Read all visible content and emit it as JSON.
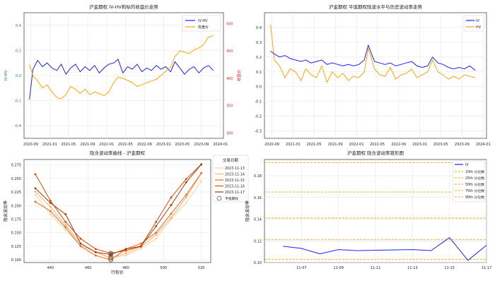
{
  "chart_data": [
    {
      "type": "line",
      "title": "沪金期权 IV-HV和标的收盘价走势",
      "ylabel_left": "IV-HV",
      "ylabel_right": "收盘价",
      "ylim_left": [
        -0.5,
        0.5
      ],
      "ylim_right": [
        290,
        520
      ],
      "yticks_left": [
        "0.4",
        "0.2",
        "0.0",
        "-0.2",
        "-0.4"
      ],
      "yticks_right": [
        "500",
        "450",
        "400",
        "350",
        "300"
      ],
      "xticks": [
        "2020-09",
        "2021-01",
        "2021-05",
        "2021-09",
        "2022-01",
        "2022-05",
        "2022-09",
        "2023-01",
        "2023-05",
        "2023-09",
        "2024-01"
      ],
      "legend_position": "upper right",
      "series": [
        {
          "name": "IV-HV",
          "color": "#1f1fff",
          "axis": "left",
          "x": [
            "2020-08-24",
            "2020-09-15",
            "2020-10-15",
            "2020-11-15",
            "2020-12-15",
            "2021-01-15",
            "2021-02-15",
            "2021-03-15",
            "2021-04-15",
            "2021-05-15",
            "2021-06-15",
            "2021-07-15",
            "2021-08-15",
            "2021-09-15",
            "2021-10-15",
            "2021-11-15",
            "2021-12-15",
            "2022-01-15",
            "2022-02-15",
            "2022-03-15",
            "2022-04-15",
            "2022-05-15",
            "2022-06-15",
            "2022-07-15",
            "2022-08-15",
            "2022-09-15",
            "2022-10-15",
            "2022-11-15",
            "2022-12-15",
            "2023-01-15",
            "2023-02-15",
            "2023-03-15",
            "2023-04-15",
            "2023-05-15",
            "2023-06-15",
            "2023-07-15",
            "2023-08-15",
            "2023-09-15",
            "2023-10-15",
            "2023-11-17"
          ],
          "values": [
            -0.19,
            0.05,
            0.12,
            0.07,
            0.1,
            0.06,
            0.04,
            0.09,
            0.01,
            0.06,
            0.09,
            0.03,
            0.07,
            0.04,
            0.08,
            0.02,
            0.06,
            0.09,
            0.1,
            0.13,
            0.02,
            0.07,
            0.05,
            0.09,
            0.03,
            0.06,
            0.04,
            0.08,
            0.05,
            0.07,
            0.03,
            0.11,
            0.06,
            0.01,
            0.05,
            0.07,
            0.02,
            0.06,
            0.08,
            0.04
          ]
        },
        {
          "name": "收盘价",
          "color": "#ffa500",
          "axis": "right",
          "x": [
            "2020-08-24",
            "2020-09-15",
            "2020-10-15",
            "2020-11-15",
            "2020-12-15",
            "2021-01-15",
            "2021-02-15",
            "2021-03-15",
            "2021-04-15",
            "2021-05-15",
            "2021-06-15",
            "2021-07-15",
            "2021-08-15",
            "2021-09-15",
            "2021-10-15",
            "2021-11-15",
            "2021-12-15",
            "2022-01-15",
            "2022-02-15",
            "2022-03-15",
            "2022-04-15",
            "2022-05-15",
            "2022-06-15",
            "2022-07-15",
            "2022-08-15",
            "2022-09-15",
            "2022-10-15",
            "2022-11-15",
            "2022-12-15",
            "2023-01-15",
            "2023-02-15",
            "2023-03-15",
            "2023-04-15",
            "2023-05-15",
            "2023-06-15",
            "2023-07-15",
            "2023-08-15",
            "2023-09-15",
            "2023-10-15",
            "2023-11-17"
          ],
          "values": [
            425,
            405,
            395,
            382,
            388,
            375,
            365,
            362,
            370,
            385,
            380,
            372,
            380,
            370,
            375,
            372,
            368,
            375,
            392,
            402,
            400,
            396,
            392,
            385,
            388,
            392,
            395,
            398,
            405,
            413,
            420,
            440,
            450,
            448,
            445,
            452,
            455,
            462,
            475,
            478
          ]
        }
      ]
    },
    {
      "type": "line",
      "title": "沪金期权 平值期权隐波水平与历史波动率走势",
      "ylim": [
        -0.35,
        0.5
      ],
      "yticks": [
        "0.4",
        "0.3",
        "0.2",
        "0.1",
        "0.0",
        "-0.1",
        "-0.2",
        "-0.3"
      ],
      "xticks": [
        "2020-09",
        "2021-01",
        "2021-05",
        "2021-09",
        "2022-01",
        "2022-05",
        "2022-09",
        "2023-01",
        "2023-05",
        "2023-09",
        "2024-01"
      ],
      "legend_position": "upper right",
      "series": [
        {
          "name": "IV",
          "color": "#1f1fff",
          "x": [
            "2020-08-24",
            "2020-09-15",
            "2020-10-15",
            "2020-11-15",
            "2020-12-15",
            "2021-01-15",
            "2021-02-15",
            "2021-03-15",
            "2021-04-15",
            "2021-05-15",
            "2021-06-15",
            "2021-07-15",
            "2021-08-15",
            "2021-09-15",
            "2021-10-15",
            "2021-11-15",
            "2021-12-15",
            "2022-01-15",
            "2022-02-15",
            "2022-03-10",
            "2022-04-15",
            "2022-05-15",
            "2022-06-15",
            "2022-07-15",
            "2022-08-15",
            "2022-09-15",
            "2022-10-15",
            "2022-11-15",
            "2022-12-15",
            "2023-01-15",
            "2023-02-15",
            "2023-03-15",
            "2023-04-15",
            "2023-05-15",
            "2023-06-15",
            "2023-07-15",
            "2023-08-15",
            "2023-09-15",
            "2023-10-15",
            "2023-11-17"
          ],
          "values": [
            0.24,
            0.22,
            0.2,
            0.21,
            0.19,
            0.18,
            0.17,
            0.18,
            0.16,
            0.17,
            0.18,
            0.15,
            0.16,
            0.15,
            0.14,
            0.15,
            0.14,
            0.15,
            0.18,
            0.28,
            0.17,
            0.16,
            0.15,
            0.16,
            0.14,
            0.15,
            0.16,
            0.17,
            0.14,
            0.13,
            0.14,
            0.2,
            0.16,
            0.15,
            0.13,
            0.12,
            0.13,
            0.12,
            0.14,
            0.11
          ]
        },
        {
          "name": "HV",
          "color": "#ffa500",
          "x": [
            "2020-08-24",
            "2020-09-15",
            "2020-10-15",
            "2020-11-15",
            "2020-12-15",
            "2021-01-15",
            "2021-02-15",
            "2021-03-15",
            "2021-04-15",
            "2021-05-15",
            "2021-06-15",
            "2021-07-15",
            "2021-08-15",
            "2021-09-15",
            "2021-10-15",
            "2021-11-15",
            "2021-12-15",
            "2022-01-15",
            "2022-02-15",
            "2022-03-10",
            "2022-04-15",
            "2022-05-15",
            "2022-06-15",
            "2022-07-15",
            "2022-08-15",
            "2022-09-15",
            "2022-10-15",
            "2022-11-15",
            "2022-12-15",
            "2023-01-15",
            "2023-02-15",
            "2023-03-15",
            "2023-04-15",
            "2023-05-15",
            "2023-06-15",
            "2023-07-15",
            "2023-08-15",
            "2023-09-15",
            "2023-10-15",
            "2023-11-17"
          ],
          "values": [
            0.42,
            0.18,
            0.14,
            0.06,
            0.12,
            0.1,
            0.04,
            0.12,
            0.08,
            0.06,
            0.14,
            0.03,
            0.1,
            0.06,
            0.09,
            0.04,
            0.07,
            0.06,
            0.1,
            0.26,
            0.12,
            0.08,
            0.07,
            0.13,
            0.05,
            0.08,
            0.09,
            0.12,
            0.06,
            0.08,
            0.1,
            0.18,
            0.1,
            0.08,
            0.05,
            0.07,
            0.05,
            0.08,
            0.07,
            0.06
          ]
        }
      ]
    },
    {
      "type": "line",
      "title": "隐含波动率曲线 - 沪金期权",
      "xlabel": "行权价",
      "ylabel": "隐含波动率",
      "xlim": [
        426,
        525
      ],
      "ylim": [
        0.095,
        0.285
      ],
      "xticks": [
        "440",
        "460",
        "480",
        "500",
        "520"
      ],
      "yticks": [
        "0.275",
        "0.250",
        "0.225",
        "0.200",
        "0.175",
        "0.150",
        "0.125",
        "0.100"
      ],
      "legend_title": "交易日期",
      "legend_atm_label": "平值期权",
      "legend_position": "upper right",
      "strikes": [
        432,
        440,
        448,
        456,
        464,
        472,
        480,
        488,
        496,
        504,
        512,
        520
      ],
      "series": [
        {
          "name": "2023-11-13",
          "color": "#fdd0a2",
          "values": [
            0.22,
            0.184,
            0.155,
            0.126,
            0.115,
            0.104,
            0.108,
            0.121,
            0.139,
            0.175,
            0.205,
            0.245
          ],
          "atm": [
            472,
            0.104
          ]
        },
        {
          "name": "2023-11-14",
          "color": "#fdae6b",
          "values": [
            0.226,
            0.198,
            0.164,
            0.13,
            0.114,
            0.103,
            0.112,
            0.124,
            0.146,
            0.178,
            0.215,
            0.26
          ],
          "atm": [
            472,
            0.103
          ]
        },
        {
          "name": "2023-11-15",
          "color": "#f16913",
          "values": [
            0.207,
            0.19,
            0.16,
            0.125,
            0.108,
            0.1,
            0.12,
            0.13,
            0.15,
            0.185,
            0.22,
            0.26
          ],
          "atm": [
            472,
            0.1
          ]
        },
        {
          "name": "2023-11-16",
          "color": "#d94801",
          "values": [
            0.258,
            0.209,
            0.17,
            0.139,
            0.12,
            0.112,
            0.117,
            0.125,
            0.17,
            0.215,
            0.249,
            0.276
          ],
          "atm": [
            472,
            0.112
          ]
        },
        {
          "name": "2023-11-17",
          "color": "#a63603",
          "values": [
            0.232,
            0.205,
            0.184,
            0.13,
            0.114,
            0.11,
            0.12,
            0.125,
            0.162,
            0.201,
            0.243,
            0.276
          ],
          "atm": [
            472,
            0.11
          ]
        }
      ]
    },
    {
      "type": "line",
      "title": "沪金期权 隐含波动率锥形图",
      "ylabel": "隐含波动率",
      "ylim": [
        0.1,
        0.195
      ],
      "yticks": [
        "0.18",
        "0.16",
        "0.14",
        "0.12",
        "0.10"
      ],
      "xticks": [
        "11-07",
        "11-09",
        "11-11",
        "11-13",
        "11-15",
        "11-17"
      ],
      "xlim": [
        "2023-11-06",
        "2023-11-17"
      ],
      "legend_position": "upper right",
      "series": [
        {
          "name": "IV",
          "color": "#1f1fff",
          "x": [
            "2023-11-06",
            "2023-11-07",
            "2023-11-08",
            "2023-11-09",
            "2023-11-10",
            "2023-11-13",
            "2023-11-14",
            "2023-11-15",
            "2023-11-16",
            "2023-11-17"
          ],
          "values": [
            0.115,
            0.113,
            0.108,
            0.112,
            0.111,
            0.112,
            0.111,
            0.123,
            0.102,
            0.116
          ]
        }
      ],
      "percentiles": [
        {
          "name": "10th 分位数",
          "value": 0.103
        },
        {
          "name": "25th 分位数",
          "value": 0.121
        },
        {
          "name": "50th 分位数",
          "value": 0.141
        },
        {
          "name": "75th 分位数",
          "value": 0.165
        },
        {
          "name": "90th 分位数",
          "value": 0.192
        }
      ],
      "percentile_color": "#ffa500"
    }
  ]
}
